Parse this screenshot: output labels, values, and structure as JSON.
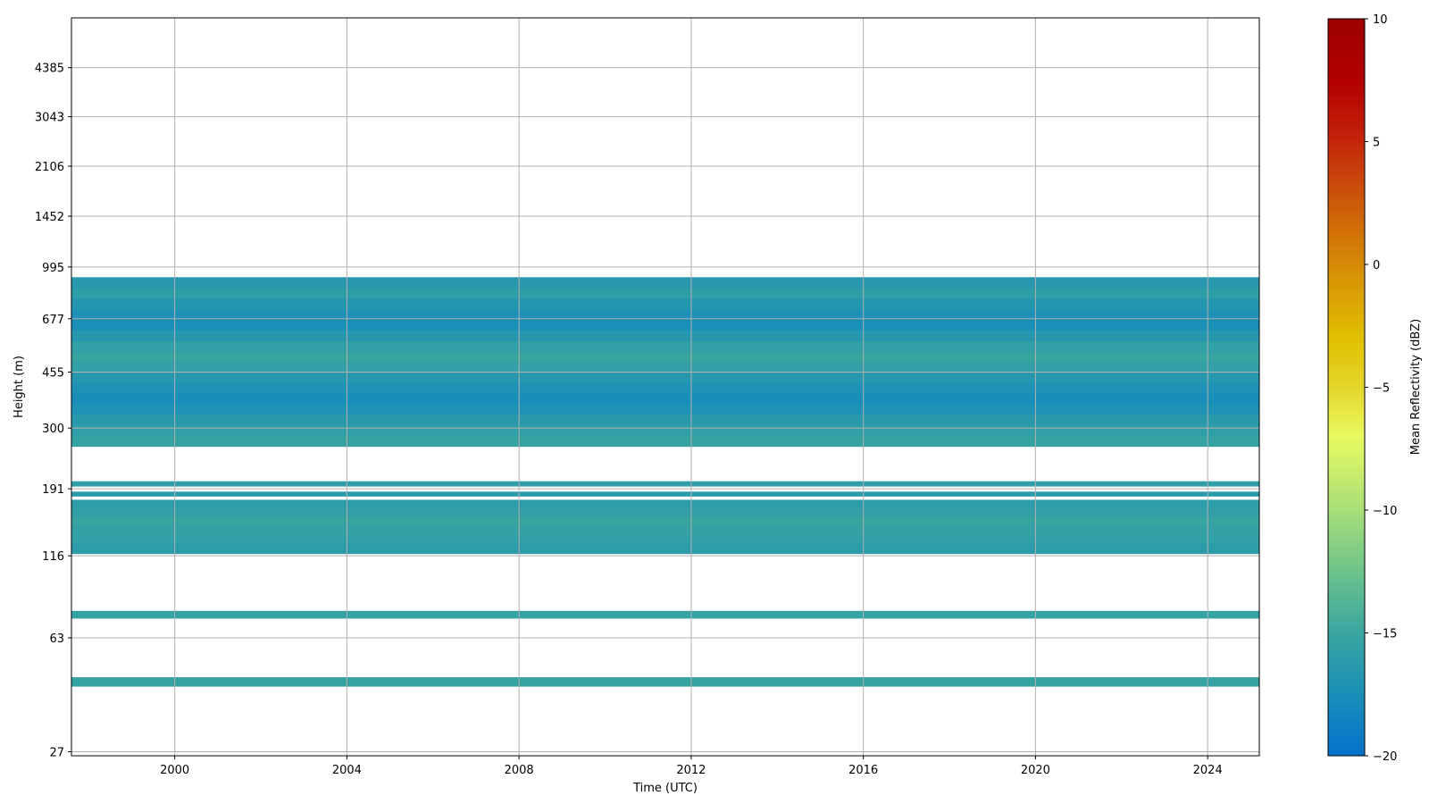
{
  "chart_data": {
    "type": "heatmap",
    "title": "",
    "xlabel": "Time (UTC)",
    "ylabel": "Height (m)",
    "x_axis": {
      "scale": "time",
      "range_years": [
        1997.6,
        2025.2
      ],
      "ticks": [
        2000,
        2004,
        2008,
        2012,
        2016,
        2020,
        2024
      ]
    },
    "y_axis": {
      "scale": "log",
      "range_m": [
        26.2,
        6350
      ],
      "ticks": [
        27,
        63,
        116,
        191,
        300,
        455,
        677,
        995,
        1452,
        2106,
        3043,
        4385
      ]
    },
    "grid": true,
    "colorbar": {
      "label": "Mean Reflectivity (dBZ)",
      "min": -20,
      "max": 10,
      "ticks": [
        -20,
        -15,
        -10,
        -5,
        0,
        5,
        10
      ],
      "tick_labels": [
        "−20",
        "−15",
        "−10",
        "−5",
        "0",
        "5",
        "10"
      ],
      "stops": [
        {
          "value": -20,
          "color": "#0571c9"
        },
        {
          "value": -17.5,
          "color": "#1a8fb8"
        },
        {
          "value": -15,
          "color": "#3aa6a0"
        },
        {
          "value": -12.5,
          "color": "#6cc48a"
        },
        {
          "value": -10,
          "color": "#a8de78"
        },
        {
          "value": -7,
          "color": "#e8fb60"
        },
        {
          "value": -5,
          "color": "#e4d62a"
        },
        {
          "value": -3,
          "color": "#e1c000"
        },
        {
          "value": 0,
          "color": "#d58a06"
        },
        {
          "value": 2.5,
          "color": "#cc5a08"
        },
        {
          "value": 5,
          "color": "#c4260b"
        },
        {
          "value": 7.5,
          "color": "#b30000"
        },
        {
          "value": 10,
          "color": "#9d0000"
        }
      ]
    },
    "layers": [
      {
        "bottom_m": 44,
        "top_m": 47,
        "dbz": -15.3
      },
      {
        "bottom_m": 73,
        "top_m": 77,
        "dbz": -15.3
      },
      {
        "bottom_m": 118,
        "top_m": 127,
        "dbz": -16.1
      },
      {
        "bottom_m": 127,
        "top_m": 137,
        "dbz": -15.7
      },
      {
        "bottom_m": 137,
        "top_m": 146,
        "dbz": -15.5
      },
      {
        "bottom_m": 146,
        "top_m": 156,
        "dbz": -15.2
      },
      {
        "bottom_m": 156,
        "top_m": 166,
        "dbz": -15.6
      },
      {
        "bottom_m": 166,
        "top_m": 176,
        "dbz": -16.0
      },
      {
        "bottom_m": 181,
        "top_m": 187,
        "dbz": -16.2
      },
      {
        "bottom_m": 195,
        "top_m": 202,
        "dbz": -15.9
      },
      {
        "bottom_m": 262,
        "top_m": 284,
        "dbz": -15.3
      },
      {
        "bottom_m": 284,
        "top_m": 307,
        "dbz": -15.8
      },
      {
        "bottom_m": 307,
        "top_m": 332,
        "dbz": -16.3
      },
      {
        "bottom_m": 332,
        "top_m": 359,
        "dbz": -17.2
      },
      {
        "bottom_m": 359,
        "top_m": 388,
        "dbz": -17.6
      },
      {
        "bottom_m": 388,
        "top_m": 420,
        "dbz": -17.3
      },
      {
        "bottom_m": 420,
        "top_m": 454,
        "dbz": -16.6
      },
      {
        "bottom_m": 454,
        "top_m": 491,
        "dbz": -15.6
      },
      {
        "bottom_m": 491,
        "top_m": 531,
        "dbz": -15.2
      },
      {
        "bottom_m": 531,
        "top_m": 575,
        "dbz": -15.7
      },
      {
        "bottom_m": 575,
        "top_m": 622,
        "dbz": -16.6
      },
      {
        "bottom_m": 622,
        "top_m": 673,
        "dbz": -17.4
      },
      {
        "bottom_m": 673,
        "top_m": 728,
        "dbz": -17.3
      },
      {
        "bottom_m": 728,
        "top_m": 788,
        "dbz": -16.7
      },
      {
        "bottom_m": 788,
        "top_m": 852,
        "dbz": -15.9
      },
      {
        "bottom_m": 852,
        "top_m": 922,
        "dbz": -16.5
      }
    ]
  }
}
